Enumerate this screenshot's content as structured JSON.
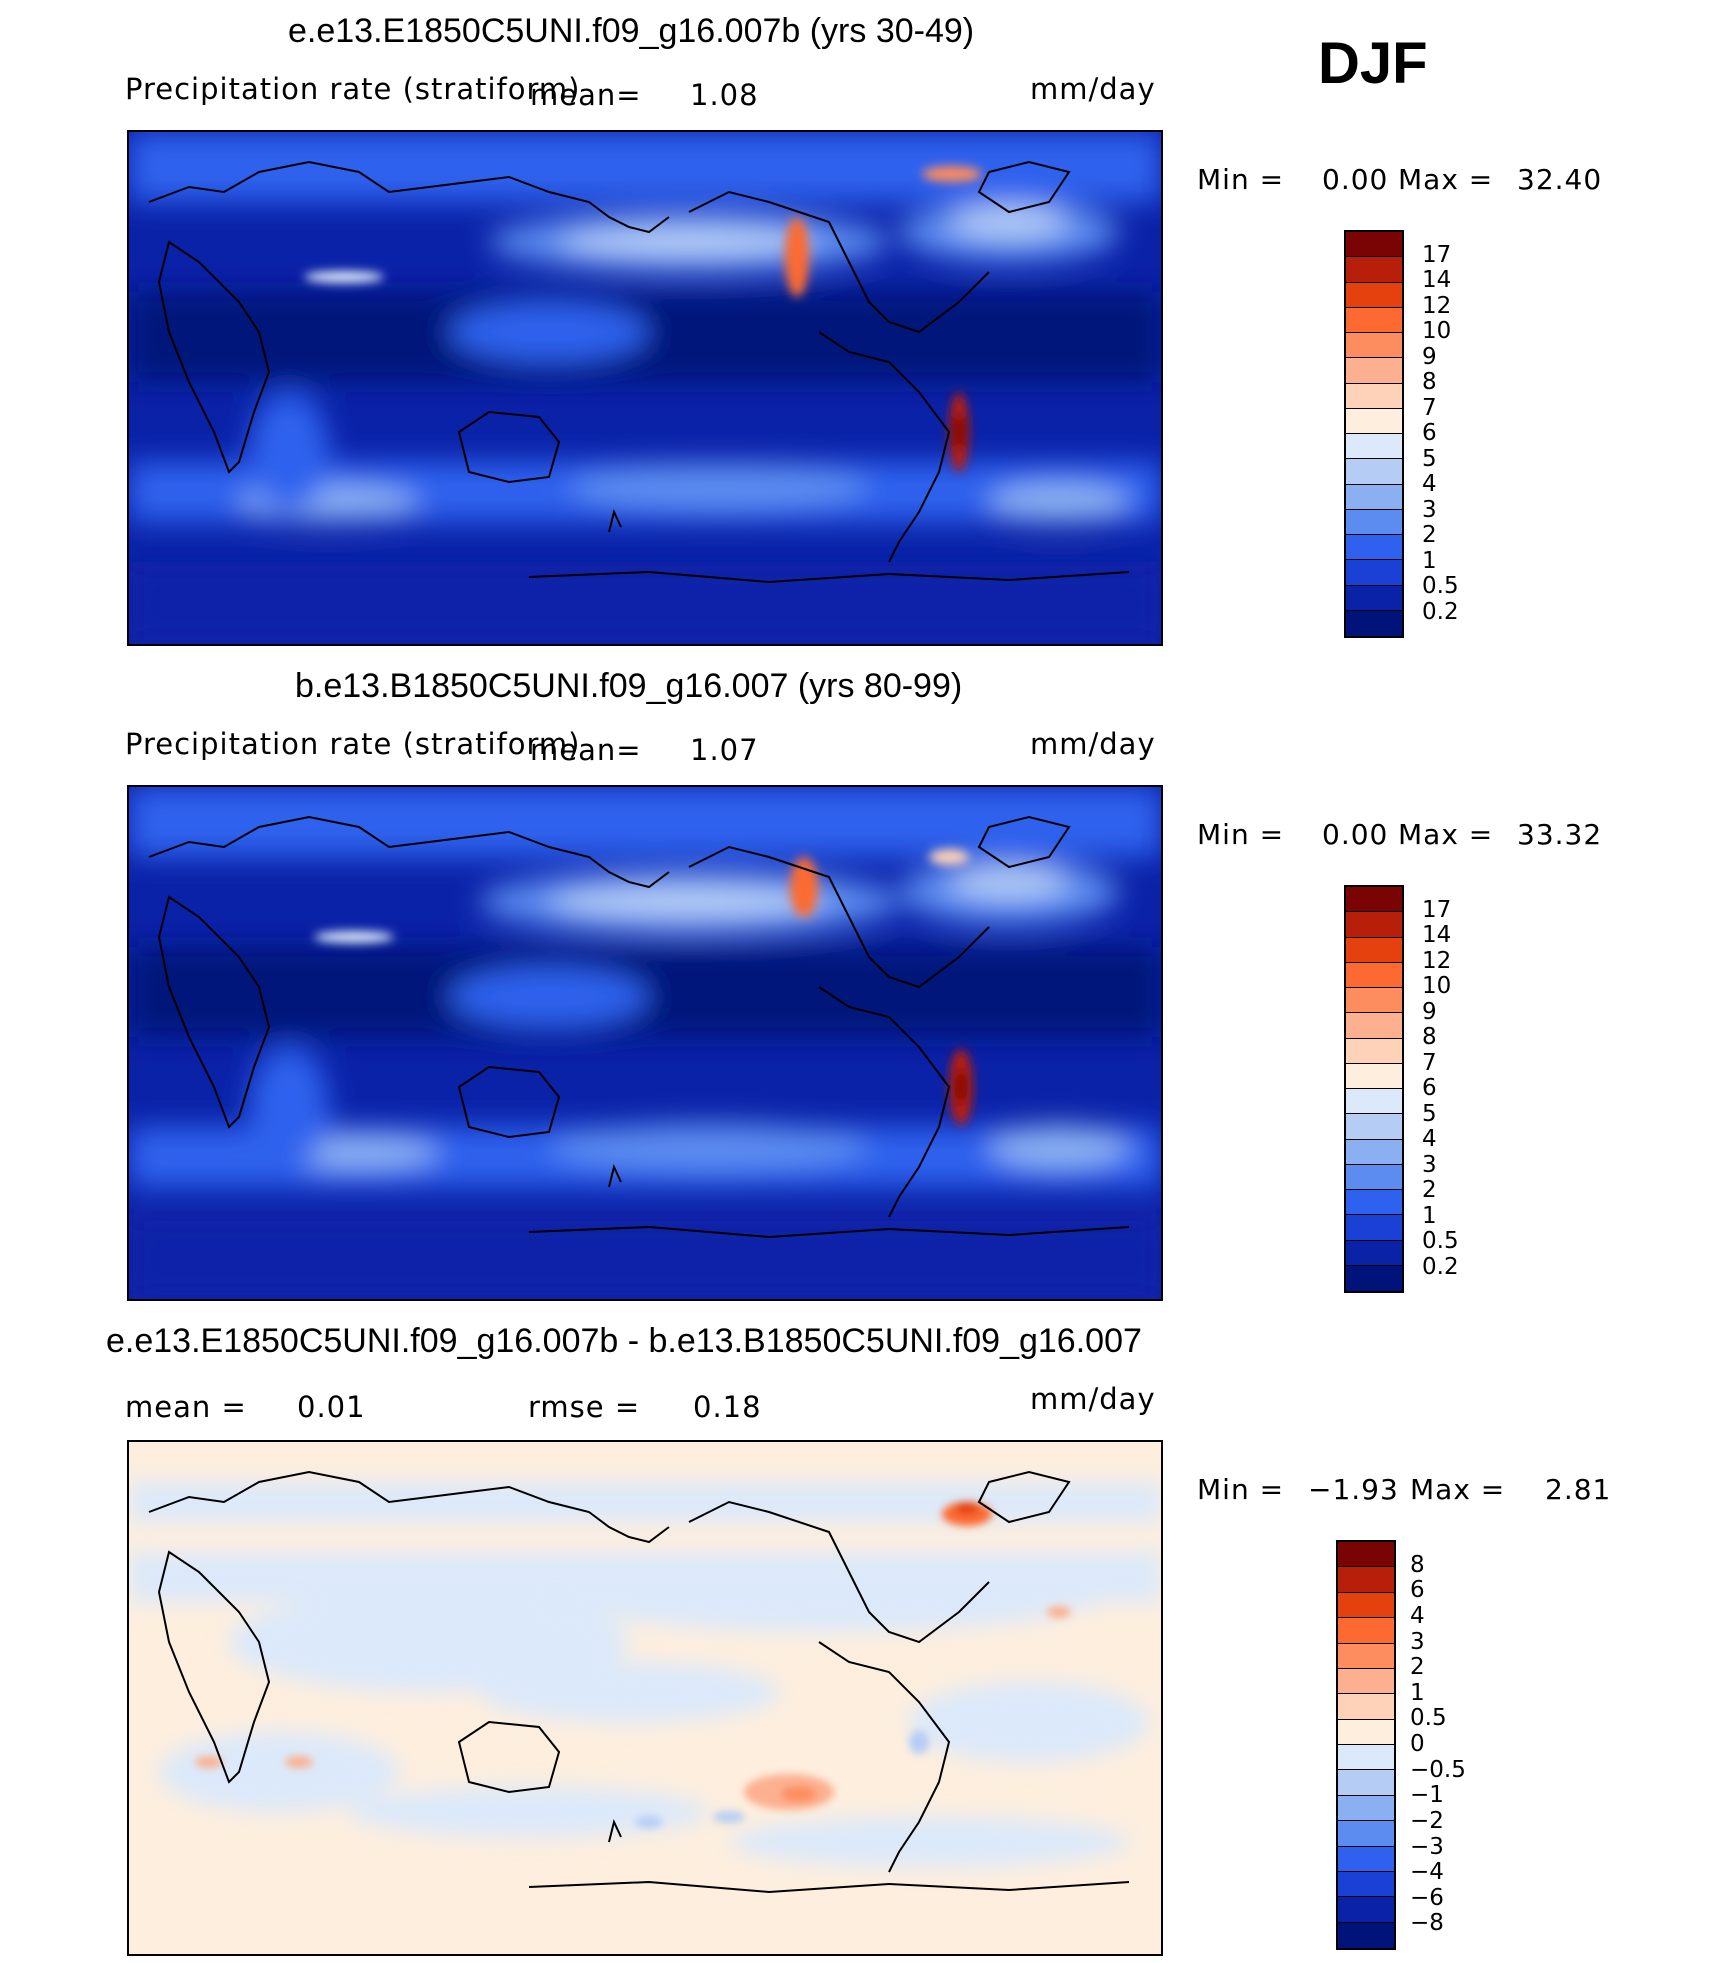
{
  "season": "DJF",
  "panels": [
    {
      "title": "e.e13.E1850C5UNI.f09_g16.007b (yrs 30-49)",
      "left_label": "Precipitation rate (stratiform)",
      "center_label": "mean=",
      "center_value": "1.08",
      "units": "mm/day",
      "min_label": "Min =",
      "min_value": "0.00",
      "max_label": "Max =",
      "max_value": "32.40",
      "colorbar_labels": [
        "17",
        "14",
        "12",
        "10",
        "9",
        "8",
        "7",
        "6",
        "5",
        "4",
        "3",
        "2",
        "1",
        "0.5",
        "0.2"
      ]
    },
    {
      "title": "b.e13.B1850C5UNI.f09_g16.007 (yrs 80-99)",
      "left_label": "Precipitation rate (stratiform)",
      "center_label": "mean=",
      "center_value": "1.07",
      "units": "mm/day",
      "min_label": "Min =",
      "min_value": "0.00",
      "max_label": "Max =",
      "max_value": "33.32",
      "colorbar_labels": [
        "17",
        "14",
        "12",
        "10",
        "9",
        "8",
        "7",
        "6",
        "5",
        "4",
        "3",
        "2",
        "1",
        "0.5",
        "0.2"
      ]
    },
    {
      "title": "e.e13.E1850C5UNI.f09_g16.007b - b.e13.B1850C5UNI.f09_g16.007",
      "left_label": "mean =",
      "left_value": "0.01",
      "center_label": "rmse =",
      "center_value": "0.18",
      "units": "mm/day",
      "min_label": "Min =",
      "min_value": "−1.93",
      "max_label": "Max =",
      "max_value": "2.81",
      "colorbar_labels": [
        "8",
        "6",
        "4",
        "3",
        "2",
        "1",
        "0.5",
        "0",
        "−0.5",
        "−1",
        "−2",
        "−3",
        "−4",
        "−6",
        "−8"
      ]
    }
  ],
  "colors": {
    "precip_scale": [
      "#7a0403",
      "#b81f0a",
      "#e5410f",
      "#fc6a32",
      "#fd8d5e",
      "#fcb08f",
      "#fdd2b8",
      "#fdeede",
      "#dce9fa",
      "#b5cdf5",
      "#8ab0f2",
      "#5c8cf0",
      "#2e62ee",
      "#1a40d6",
      "#0a22a8",
      "#00137a"
    ],
    "diff_scale": [
      "#7a0403",
      "#b81f0a",
      "#e5410f",
      "#fc6a32",
      "#fd8d5e",
      "#fcb08f",
      "#fdd2b8",
      "#fdeede",
      "#dce9fa",
      "#b5cdf5",
      "#8ab0f2",
      "#5c8cf0",
      "#2e62ee",
      "#1a40d6",
      "#0a22a8",
      "#00137a"
    ]
  }
}
